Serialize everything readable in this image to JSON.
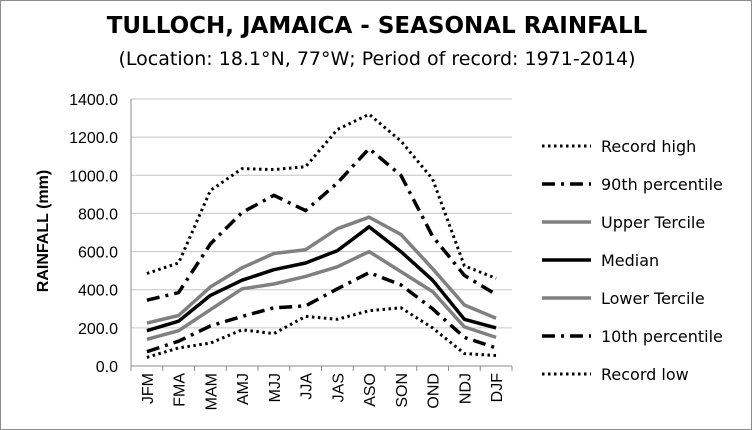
{
  "chart_data": {
    "type": "line",
    "title": "TULLOCH, JAMAICA - SEASONAL RAINFALL",
    "subtitle": "(Location: 18.1°N, 77°W; Period of record: 1971-2014)",
    "ylabel": "RAINFALL (mm)",
    "xlabel": "",
    "ylim": [
      0,
      1400
    ],
    "yticks": [
      "0.0",
      "200.0",
      "400.0",
      "600.0",
      "800.0",
      "1000.0",
      "1200.0",
      "1400.0"
    ],
    "grid": true,
    "legend_position": "right",
    "categories": [
      "JFM",
      "FMA",
      "MAM",
      "AMJ",
      "MJJ",
      "JJA",
      "JAS",
      "ASO",
      "SON",
      "OND",
      "NDJ",
      "DJF"
    ],
    "series": [
      {
        "name": "Record high",
        "style": "dotted",
        "color": "#000000",
        "values": [
          485,
          540,
          920,
          1035,
          1030,
          1045,
          1240,
          1320,
          1180,
          980,
          525,
          460
        ]
      },
      {
        "name": "90th percentile",
        "style": "dashdot",
        "color": "#000000",
        "values": [
          345,
          385,
          640,
          805,
          895,
          815,
          960,
          1140,
          1000,
          680,
          475,
          375
        ]
      },
      {
        "name": "Upper Tercile",
        "style": "solid-gray",
        "color": "#808080",
        "values": [
          225,
          265,
          415,
          515,
          590,
          610,
          720,
          780,
          690,
          510,
          320,
          250
        ]
      },
      {
        "name": "Median",
        "style": "solid",
        "color": "#000000",
        "values": [
          185,
          235,
          370,
          450,
          505,
          540,
          605,
          730,
          600,
          450,
          245,
          200
        ]
      },
      {
        "name": "Lower Tercile",
        "style": "solid-gray",
        "color": "#808080",
        "values": [
          140,
          185,
          295,
          405,
          430,
          470,
          520,
          600,
          495,
          390,
          205,
          150
        ]
      },
      {
        "name": "10th percentile",
        "style": "dashdot",
        "color": "#000000",
        "values": [
          75,
          130,
          210,
          260,
          305,
          315,
          405,
          490,
          425,
          300,
          150,
          95
        ]
      },
      {
        "name": "Record low",
        "style": "dotted",
        "color": "#000000",
        "values": [
          45,
          95,
          120,
          190,
          170,
          260,
          245,
          290,
          305,
          200,
          65,
          55
        ]
      }
    ]
  }
}
